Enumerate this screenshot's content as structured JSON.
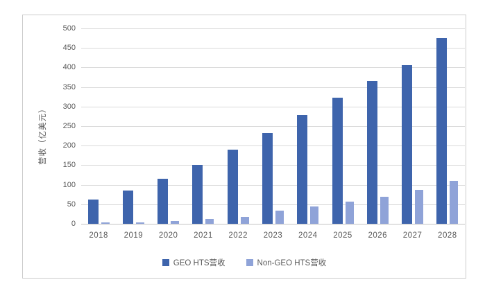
{
  "chart_data": {
    "type": "bar",
    "title": "",
    "xlabel": "",
    "ylabel": "营收（亿美元）",
    "ylim": [
      0,
      500
    ],
    "ytick_step": 50,
    "grid": true,
    "legend_position": "bottom",
    "categories": [
      "2018",
      "2019",
      "2020",
      "2021",
      "2022",
      "2023",
      "2024",
      "2025",
      "2026",
      "2027",
      "2028"
    ],
    "series": [
      {
        "name": "GEO HTS营收",
        "color": "#3e64ac",
        "values": [
          62,
          85,
          116,
          151,
          189,
          233,
          278,
          322,
          366,
          406,
          475
        ]
      },
      {
        "name": "Non-GEO HTS营收",
        "color": "#8fa3d8",
        "values": [
          3,
          4,
          7,
          12,
          18,
          33,
          44,
          56,
          70,
          86,
          110
        ]
      }
    ],
    "colors": {
      "gridline": "#d9d9d9",
      "baseline": "#c3c3c3",
      "axis_text": "#595959",
      "frame_border": "#cbcbcb",
      "background": "#ffffff"
    }
  }
}
